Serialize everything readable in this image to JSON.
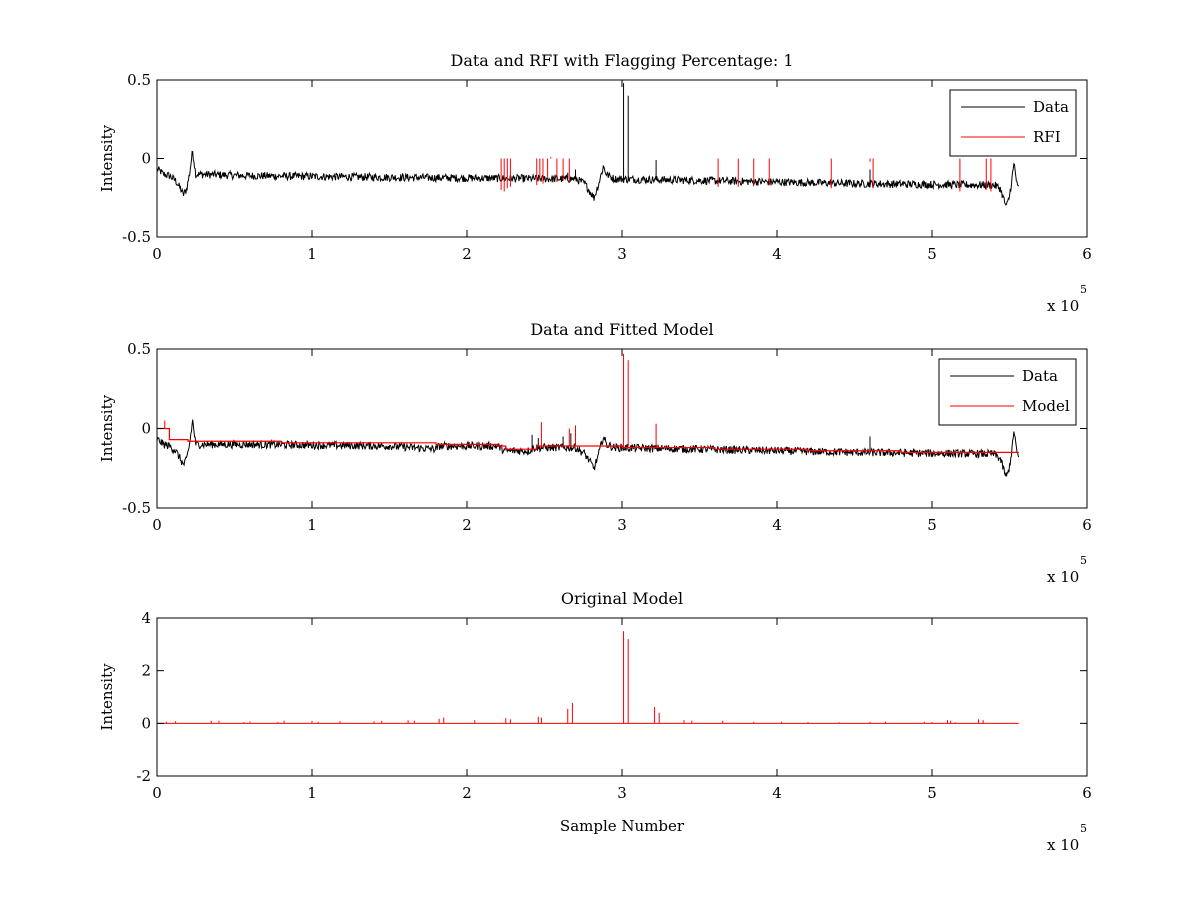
{
  "chart_data": [
    {
      "type": "line",
      "title": "Data and RFI with Flagging Percentage: 1",
      "xlabel": "",
      "ylabel": "Intensity",
      "xlim": [
        0,
        600000
      ],
      "ylim": [
        -0.5,
        0.5
      ],
      "x_ticks": [
        0,
        100000,
        200000,
        300000,
        400000,
        500000,
        600000
      ],
      "x_tick_labels": [
        "0",
        "1",
        "2",
        "3",
        "4",
        "5",
        "6"
      ],
      "y_ticks": [
        -0.5,
        0,
        0.5
      ],
      "y_tick_labels": [
        "-0.5",
        "0",
        "0.5"
      ],
      "x_multiplier": {
        "base": "x 10",
        "exponent": "5"
      },
      "legend": {
        "position": "top-right",
        "entries": [
          {
            "name": "Data",
            "color": "#000000"
          },
          {
            "name": "RFI",
            "color": "#ff0000"
          }
        ]
      },
      "series": [
        {
          "name": "Data",
          "color": "#000000",
          "baseline": [
            [
              0,
              -0.07
            ],
            [
              2000,
              -0.08
            ],
            [
              4000,
              -0.1
            ],
            [
              8000,
              -0.11
            ],
            [
              12000,
              -0.14
            ],
            [
              15000,
              -0.19
            ],
            [
              17000,
              -0.23
            ],
            [
              19000,
              -0.2
            ],
            [
              21000,
              -0.1
            ],
            [
              23000,
              0.05
            ],
            [
              25000,
              -0.1
            ],
            [
              60000,
              -0.11
            ],
            [
              150000,
              -0.12
            ],
            [
              260000,
              -0.13
            ],
            [
              270000,
              -0.13
            ],
            [
              276000,
              -0.16
            ],
            [
              280000,
              -0.22
            ],
            [
              282000,
              -0.25
            ],
            [
              285000,
              -0.16
            ],
            [
              288000,
              -0.05
            ],
            [
              290000,
              -0.1
            ],
            [
              295000,
              -0.13
            ],
            [
              350000,
              -0.14
            ],
            [
              450000,
              -0.16
            ],
            [
              540000,
              -0.17
            ],
            [
              544000,
              -0.19
            ],
            [
              546000,
              -0.25
            ],
            [
              548000,
              -0.31
            ],
            [
              550000,
              -0.24
            ],
            [
              552000,
              -0.1
            ],
            [
              553000,
              -0.03
            ],
            [
              555000,
              -0.18
            ],
            [
              556000,
              -0.19
            ]
          ],
          "noise_amplitude": 0.025,
          "spikes": [
            [
              301000,
              0.48
            ],
            [
              304000,
              0.4
            ],
            [
              322000,
              -0.01
            ],
            [
              270000,
              -0.07
            ],
            [
              265000,
              -0.09
            ],
            [
              460000,
              -0.07
            ]
          ]
        },
        {
          "name": "RFI",
          "color": "#ff0000",
          "spikes": [
            [
              222000,
              -0.2
            ],
            [
              224000,
              -0.21
            ],
            [
              226000,
              -0.19
            ],
            [
              228000,
              -0.18
            ],
            [
              245000,
              -0.17
            ],
            [
              247000,
              -0.14
            ],
            [
              249000,
              -0.16
            ],
            [
              252000,
              -0.12
            ],
            [
              254000,
              0.01
            ],
            [
              258000,
              -0.15
            ],
            [
              262000,
              -0.14
            ],
            [
              266000,
              -0.15
            ],
            [
              362000,
              -0.18
            ],
            [
              375000,
              -0.18
            ],
            [
              385000,
              -0.17
            ],
            [
              395000,
              -0.17
            ],
            [
              435000,
              -0.19
            ],
            [
              460000,
              -0.02
            ],
            [
              462000,
              -0.19
            ],
            [
              518000,
              -0.21
            ],
            [
              535000,
              -0.2
            ],
            [
              538000,
              -0.21
            ]
          ]
        }
      ]
    },
    {
      "type": "line",
      "title": "Data and Fitted Model",
      "xlabel": "",
      "ylabel": "Intensity",
      "xlim": [
        0,
        600000
      ],
      "ylim": [
        -0.5,
        0.5
      ],
      "x_ticks": [
        0,
        100000,
        200000,
        300000,
        400000,
        500000,
        600000
      ],
      "x_tick_labels": [
        "0",
        "1",
        "2",
        "3",
        "4",
        "5",
        "6"
      ],
      "y_ticks": [
        -0.5,
        0,
        0.5
      ],
      "y_tick_labels": [
        "-0.5",
        "0",
        "0.5"
      ],
      "x_multiplier": {
        "base": "x 10",
        "exponent": "5"
      },
      "legend": {
        "position": "top-right",
        "entries": [
          {
            "name": "Data",
            "color": "#000000"
          },
          {
            "name": "Model",
            "color": "#ff0000"
          }
        ]
      },
      "series": [
        {
          "name": "Data",
          "color": "#000000",
          "baseline": [
            [
              0,
              -0.07
            ],
            [
              2000,
              -0.08
            ],
            [
              4000,
              -0.1
            ],
            [
              8000,
              -0.11
            ],
            [
              12000,
              -0.14
            ],
            [
              15000,
              -0.19
            ],
            [
              17000,
              -0.23
            ],
            [
              19000,
              -0.2
            ],
            [
              21000,
              -0.1
            ],
            [
              23000,
              0.05
            ],
            [
              25000,
              -0.1
            ],
            [
              60000,
              -0.1
            ],
            [
              150000,
              -0.11
            ],
            [
              180000,
              -0.13
            ],
            [
              182000,
              -0.11
            ],
            [
              220000,
              -0.11
            ],
            [
              224000,
              -0.14
            ],
            [
              240000,
              -0.14
            ],
            [
              244000,
              -0.12
            ],
            [
              270000,
              -0.12
            ],
            [
              276000,
              -0.16
            ],
            [
              280000,
              -0.22
            ],
            [
              282000,
              -0.25
            ],
            [
              285000,
              -0.16
            ],
            [
              288000,
              -0.05
            ],
            [
              290000,
              -0.1
            ],
            [
              295000,
              -0.12
            ],
            [
              350000,
              -0.13
            ],
            [
              450000,
              -0.15
            ],
            [
              540000,
              -0.16
            ],
            [
              544000,
              -0.19
            ],
            [
              546000,
              -0.25
            ],
            [
              548000,
              -0.31
            ],
            [
              550000,
              -0.24
            ],
            [
              552000,
              -0.1
            ],
            [
              553000,
              -0.01
            ],
            [
              555000,
              -0.17
            ],
            [
              556000,
              -0.18
            ]
          ],
          "noise_amplitude": 0.025,
          "spikes": [
            [
              242000,
              -0.04
            ],
            [
              246000,
              -0.06
            ],
            [
              262000,
              -0.05
            ],
            [
              267000,
              -0.03
            ],
            [
              460000,
              -0.05
            ]
          ]
        },
        {
          "name": "Model",
          "color": "#ff0000",
          "steps": [
            [
              0,
              0.0
            ],
            [
              8000,
              0.0
            ],
            [
              8000,
              -0.07
            ],
            [
              20000,
              -0.07
            ],
            [
              20000,
              -0.08
            ],
            [
              80000,
              -0.08
            ],
            [
              80000,
              -0.09
            ],
            [
              180000,
              -0.09
            ],
            [
              180000,
              -0.1
            ],
            [
              220000,
              -0.1
            ],
            [
              220000,
              -0.11
            ],
            [
              225000,
              -0.11
            ],
            [
              225000,
              -0.13
            ],
            [
              245000,
              -0.13
            ],
            [
              245000,
              -0.11
            ],
            [
              300000,
              -0.11
            ],
            [
              300000,
              -0.12
            ],
            [
              360000,
              -0.12
            ],
            [
              360000,
              -0.13
            ],
            [
              420000,
              -0.13
            ],
            [
              420000,
              -0.14
            ],
            [
              480000,
              -0.14
            ],
            [
              480000,
              -0.15
            ],
            [
              556000,
              -0.15
            ]
          ],
          "spikes": [
            [
              301000,
              0.47
            ],
            [
              304000,
              0.43
            ],
            [
              322000,
              0.03
            ],
            [
              270000,
              0.02
            ],
            [
              266000,
              0.0
            ],
            [
              248000,
              0.04
            ],
            [
              5000,
              0.05
            ]
          ]
        }
      ]
    },
    {
      "type": "line",
      "title": "Original Model",
      "xlabel": "Sample Number",
      "ylabel": "Intensity",
      "xlim": [
        0,
        600000
      ],
      "ylim": [
        -2,
        4
      ],
      "x_ticks": [
        0,
        100000,
        200000,
        300000,
        400000,
        500000,
        600000
      ],
      "x_tick_labels": [
        "0",
        "1",
        "2",
        "3",
        "4",
        "5",
        "6"
      ],
      "y_ticks": [
        -2,
        0,
        2,
        4
      ],
      "y_tick_labels": [
        "-2",
        "0",
        "2",
        "4"
      ],
      "x_multiplier": {
        "base": "x 10",
        "exponent": "5"
      },
      "series": [
        {
          "name": "Model",
          "color": "#ff0000",
          "baseline": [
            [
              0,
              0
            ],
            [
              556000,
              0
            ]
          ],
          "spikes": [
            [
              301000,
              3.5
            ],
            [
              304000,
              3.2
            ],
            [
              321000,
              0.62
            ],
            [
              324000,
              0.4
            ],
            [
              265000,
              0.55
            ],
            [
              268000,
              0.78
            ],
            [
              246000,
              0.25
            ],
            [
              248000,
              0.22
            ],
            [
              185000,
              0.22
            ],
            [
              182000,
              0.17
            ],
            [
              225000,
              0.2
            ],
            [
              228000,
              0.15
            ],
            [
              205000,
              0.12
            ],
            [
              162000,
              0.12
            ],
            [
              166000,
              0.1
            ],
            [
              145000,
              0.1
            ],
            [
              140000,
              0.08
            ],
            [
              118000,
              0.08
            ],
            [
              100000,
              0.1
            ],
            [
              104000,
              0.06
            ],
            [
              82000,
              0.1
            ],
            [
              78000,
              0.06
            ],
            [
              60000,
              0.07
            ],
            [
              56000,
              0.05
            ],
            [
              40000,
              0.1
            ],
            [
              35000,
              0.1
            ],
            [
              12000,
              0.08
            ],
            [
              6000,
              0.06
            ],
            [
              345000,
              0.1
            ],
            [
              340000,
              0.12
            ],
            [
              365000,
              0.1
            ],
            [
              385000,
              0.06
            ],
            [
              403000,
              0.06
            ],
            [
              420000,
              0.05
            ],
            [
              440000,
              0.04
            ],
            [
              460000,
              0.06
            ],
            [
              470000,
              0.06
            ],
            [
              495000,
              0.06
            ],
            [
              500000,
              0.05
            ],
            [
              510000,
              0.12
            ],
            [
              512000,
              0.1
            ],
            [
              530000,
              0.15
            ],
            [
              533000,
              0.12
            ],
            [
              515000,
              0.04
            ]
          ]
        }
      ]
    }
  ]
}
